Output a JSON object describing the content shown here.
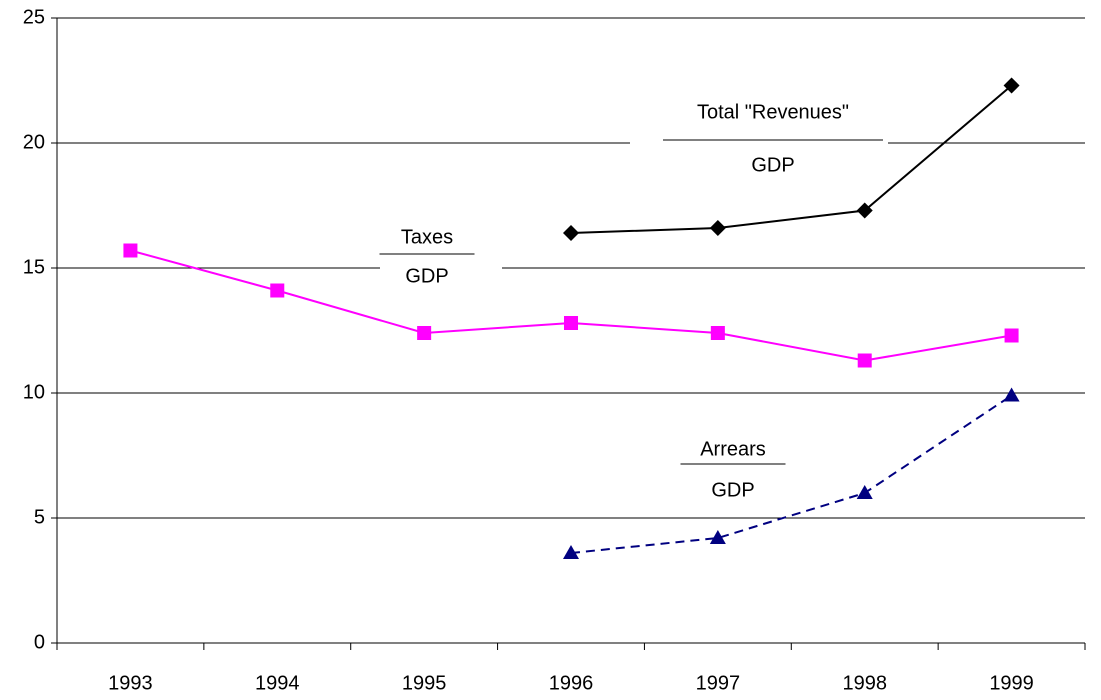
{
  "chart_data": {
    "type": "line",
    "categories": [
      "1993",
      "1994",
      "1995",
      "1996",
      "1997",
      "1998",
      "1999"
    ],
    "series": [
      {
        "name": "Taxes",
        "color": "#ff00ff",
        "marker": "square",
        "dashed": false,
        "values": [
          15.7,
          14.1,
          12.4,
          12.8,
          12.4,
          11.3,
          12.3
        ]
      },
      {
        "name": "Total \"Revenues\"",
        "color": "#000000",
        "marker": "diamond",
        "dashed": false,
        "values": [
          null,
          null,
          null,
          16.4,
          16.6,
          17.3,
          22.3
        ]
      },
      {
        "name": "Arrears",
        "color": "#000080",
        "marker": "triangle",
        "dashed": true,
        "values": [
          null,
          null,
          null,
          3.6,
          4.2,
          6.0,
          9.9
        ]
      }
    ],
    "annotations": [
      {
        "numerator": "Taxes",
        "denominator": "GDP"
      },
      {
        "numerator": "Total \"Revenues\"",
        "denominator": "GDP"
      },
      {
        "numerator": "Arrears",
        "denominator": "GDP"
      }
    ],
    "ylim": [
      0,
      25
    ],
    "yticks": [
      0,
      5,
      10,
      15,
      20,
      25
    ],
    "grid": true
  }
}
